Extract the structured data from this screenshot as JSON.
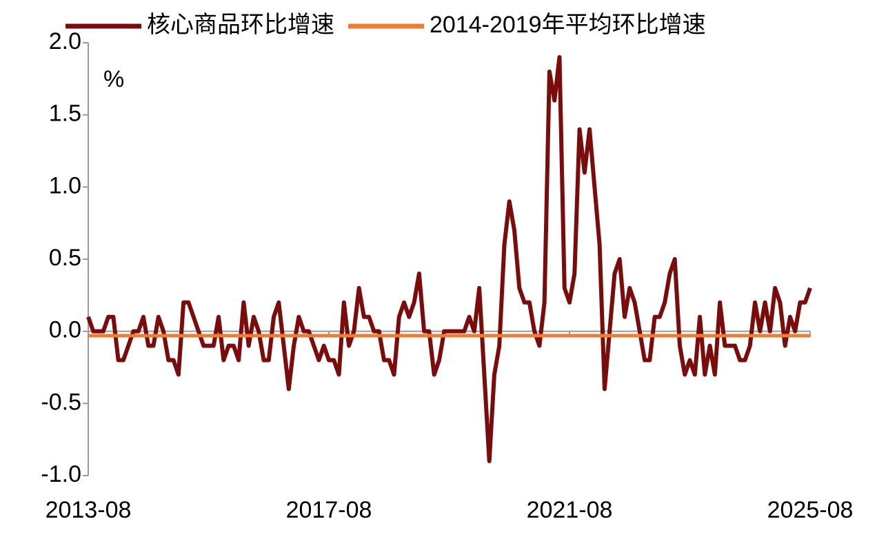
{
  "chart_data": {
    "type": "line",
    "y_unit_label": "%",
    "x": [
      "2013-08",
      "2013-09",
      "2013-10",
      "2013-11",
      "2013-12",
      "2014-01",
      "2014-02",
      "2014-03",
      "2014-04",
      "2014-05",
      "2014-06",
      "2014-07",
      "2014-08",
      "2014-09",
      "2014-10",
      "2014-11",
      "2014-12",
      "2015-01",
      "2015-02",
      "2015-03",
      "2015-04",
      "2015-05",
      "2015-06",
      "2015-07",
      "2015-08",
      "2015-09",
      "2015-10",
      "2015-11",
      "2015-12",
      "2016-01",
      "2016-02",
      "2016-03",
      "2016-04",
      "2016-05",
      "2016-06",
      "2016-07",
      "2016-08",
      "2016-09",
      "2016-10",
      "2016-11",
      "2016-12",
      "2017-01",
      "2017-02",
      "2017-03",
      "2017-04",
      "2017-05",
      "2017-06",
      "2017-07",
      "2017-08",
      "2017-09",
      "2017-10",
      "2017-11",
      "2017-12",
      "2018-01",
      "2018-02",
      "2018-03",
      "2018-04",
      "2018-05",
      "2018-06",
      "2018-07",
      "2018-08",
      "2018-09",
      "2018-10",
      "2018-11",
      "2018-12",
      "2019-01",
      "2019-02",
      "2019-03",
      "2019-04",
      "2019-05",
      "2019-06",
      "2019-07",
      "2019-08",
      "2019-09",
      "2019-10",
      "2019-11",
      "2019-12",
      "2020-01",
      "2020-02",
      "2020-03",
      "2020-04",
      "2020-05",
      "2020-06",
      "2020-07",
      "2020-08",
      "2020-09",
      "2020-10",
      "2020-11",
      "2020-12",
      "2021-01",
      "2021-02",
      "2021-03",
      "2021-04",
      "2021-05",
      "2021-06",
      "2021-07",
      "2021-08",
      "2021-09",
      "2021-10",
      "2021-11",
      "2021-12",
      "2022-01",
      "2022-02",
      "2022-03",
      "2022-04",
      "2022-05",
      "2022-06",
      "2022-07",
      "2022-08",
      "2022-09",
      "2022-10",
      "2022-11",
      "2022-12",
      "2023-01",
      "2023-02",
      "2023-03",
      "2023-04",
      "2023-05",
      "2023-06",
      "2023-07",
      "2023-08",
      "2023-09",
      "2023-10",
      "2023-11",
      "2023-12",
      "2024-01",
      "2024-02",
      "2024-03",
      "2024-04",
      "2024-05",
      "2024-06",
      "2024-07",
      "2024-08",
      "2024-09",
      "2024-10",
      "2024-11",
      "2024-12",
      "2025-01",
      "2025-02",
      "2025-03",
      "2025-04",
      "2025-05",
      "2025-06",
      "2025-07",
      "2025-08"
    ],
    "series": [
      {
        "name": "核心商品环比增速",
        "color": "#7b0c0c",
        "values": [
          0.1,
          0,
          0,
          0,
          0.1,
          0.1,
          -0.2,
          -0.2,
          -0.1,
          0,
          0,
          0.1,
          -0.1,
          -0.1,
          0.1,
          0,
          -0.2,
          -0.2,
          -0.3,
          0.2,
          0.2,
          0.1,
          0,
          -0.1,
          -0.1,
          -0.1,
          0.1,
          -0.2,
          -0.1,
          -0.1,
          -0.2,
          0.2,
          -0.1,
          0.1,
          0,
          -0.2,
          -0.2,
          0.1,
          0.2,
          -0.1,
          -0.4,
          -0.1,
          0.1,
          0,
          0,
          -0.1,
          -0.2,
          -0.1,
          -0.2,
          -0.2,
          -0.3,
          0.2,
          -0.1,
          0,
          0.3,
          0.1,
          0.1,
          0,
          0,
          -0.2,
          -0.2,
          -0.3,
          0.1,
          0.2,
          0.1,
          0.2,
          0.4,
          0,
          0,
          -0.3,
          -0.2,
          0,
          0,
          0,
          0,
          0,
          0.1,
          0,
          0.3,
          -0.3,
          -0.9,
          -0.3,
          -0.1,
          0.6,
          0.9,
          0.7,
          0.3,
          0.2,
          0.2,
          0,
          -0.1,
          0.2,
          1.8,
          1.6,
          1.9,
          0.3,
          0.2,
          0.4,
          1.4,
          1.1,
          1.4,
          1.0,
          0.6,
          -0.4,
          0,
          0.4,
          0.5,
          0.1,
          0.3,
          0.2,
          0,
          -0.2,
          -0.2,
          0.1,
          0.1,
          0.2,
          0.4,
          0.5,
          -0.1,
          -0.3,
          -0.2,
          -0.3,
          0.1,
          -0.3,
          -0.1,
          -0.3,
          0.2,
          -0.1,
          -0.1,
          -0.1,
          -0.2,
          -0.2,
          -0.1,
          0.2,
          0,
          0.2,
          0,
          0.3,
          0.2,
          -0.1,
          0.1,
          0,
          0.2,
          0.2,
          0.3
        ]
      },
      {
        "name": "2014-2019年平均环比增速",
        "color": "#ed7d31",
        "values": [
          -0.03,
          -0.03,
          -0.03,
          -0.03,
          -0.03,
          -0.03,
          -0.03,
          -0.03,
          -0.03,
          -0.03,
          -0.03,
          -0.03,
          -0.03,
          -0.03,
          -0.03,
          -0.03,
          -0.03,
          -0.03,
          -0.03,
          -0.03,
          -0.03,
          -0.03,
          -0.03,
          -0.03,
          -0.03,
          -0.03,
          -0.03,
          -0.03,
          -0.03,
          -0.03,
          -0.03,
          -0.03,
          -0.03,
          -0.03,
          -0.03,
          -0.03,
          -0.03,
          -0.03,
          -0.03,
          -0.03,
          -0.03,
          -0.03,
          -0.03,
          -0.03,
          -0.03,
          -0.03,
          -0.03,
          -0.03,
          -0.03,
          -0.03,
          -0.03,
          -0.03,
          -0.03,
          -0.03,
          -0.03,
          -0.03,
          -0.03,
          -0.03,
          -0.03,
          -0.03,
          -0.03,
          -0.03,
          -0.03,
          -0.03,
          -0.03,
          -0.03,
          -0.03,
          -0.03,
          -0.03,
          -0.03,
          -0.03,
          -0.03,
          -0.03,
          -0.03,
          -0.03,
          -0.03,
          -0.03,
          -0.03,
          -0.03,
          -0.03,
          -0.03,
          -0.03,
          -0.03,
          -0.03,
          -0.03,
          -0.03,
          -0.03,
          -0.03,
          -0.03,
          -0.03,
          -0.03,
          -0.03,
          -0.03,
          -0.03,
          -0.03,
          -0.03,
          -0.03,
          -0.03,
          -0.03,
          -0.03,
          -0.03,
          -0.03,
          -0.03,
          -0.03,
          -0.03,
          -0.03,
          -0.03,
          -0.03,
          -0.03,
          -0.03,
          -0.03,
          -0.03,
          -0.03,
          -0.03,
          -0.03,
          -0.03,
          -0.03,
          -0.03,
          -0.03,
          -0.03,
          -0.03,
          -0.03,
          -0.03,
          -0.03,
          -0.03,
          -0.03,
          -0.03,
          -0.03,
          -0.03,
          -0.03,
          -0.03,
          -0.03,
          -0.03,
          -0.03,
          -0.03,
          -0.03,
          -0.03,
          -0.03,
          -0.03,
          -0.03,
          -0.03,
          -0.03,
          -0.03,
          -0.03,
          -0.03
        ]
      }
    ],
    "ylim": [
      -1.0,
      2.0
    ],
    "yticks": [
      {
        "value": -1.0,
        "label": "-1.0"
      },
      {
        "value": -0.5,
        "label": "-0.5"
      },
      {
        "value": 0,
        "label": "0.0"
      },
      {
        "value": 0.5,
        "label": "0.5"
      },
      {
        "value": 1.0,
        "label": "1.0"
      },
      {
        "value": 1.5,
        "label": "1.5"
      },
      {
        "value": 2.0,
        "label": "2.0"
      }
    ],
    "xticks": [
      "2013-08",
      "2017-08",
      "2021-08",
      "2025-08"
    ],
    "legend": "top"
  }
}
